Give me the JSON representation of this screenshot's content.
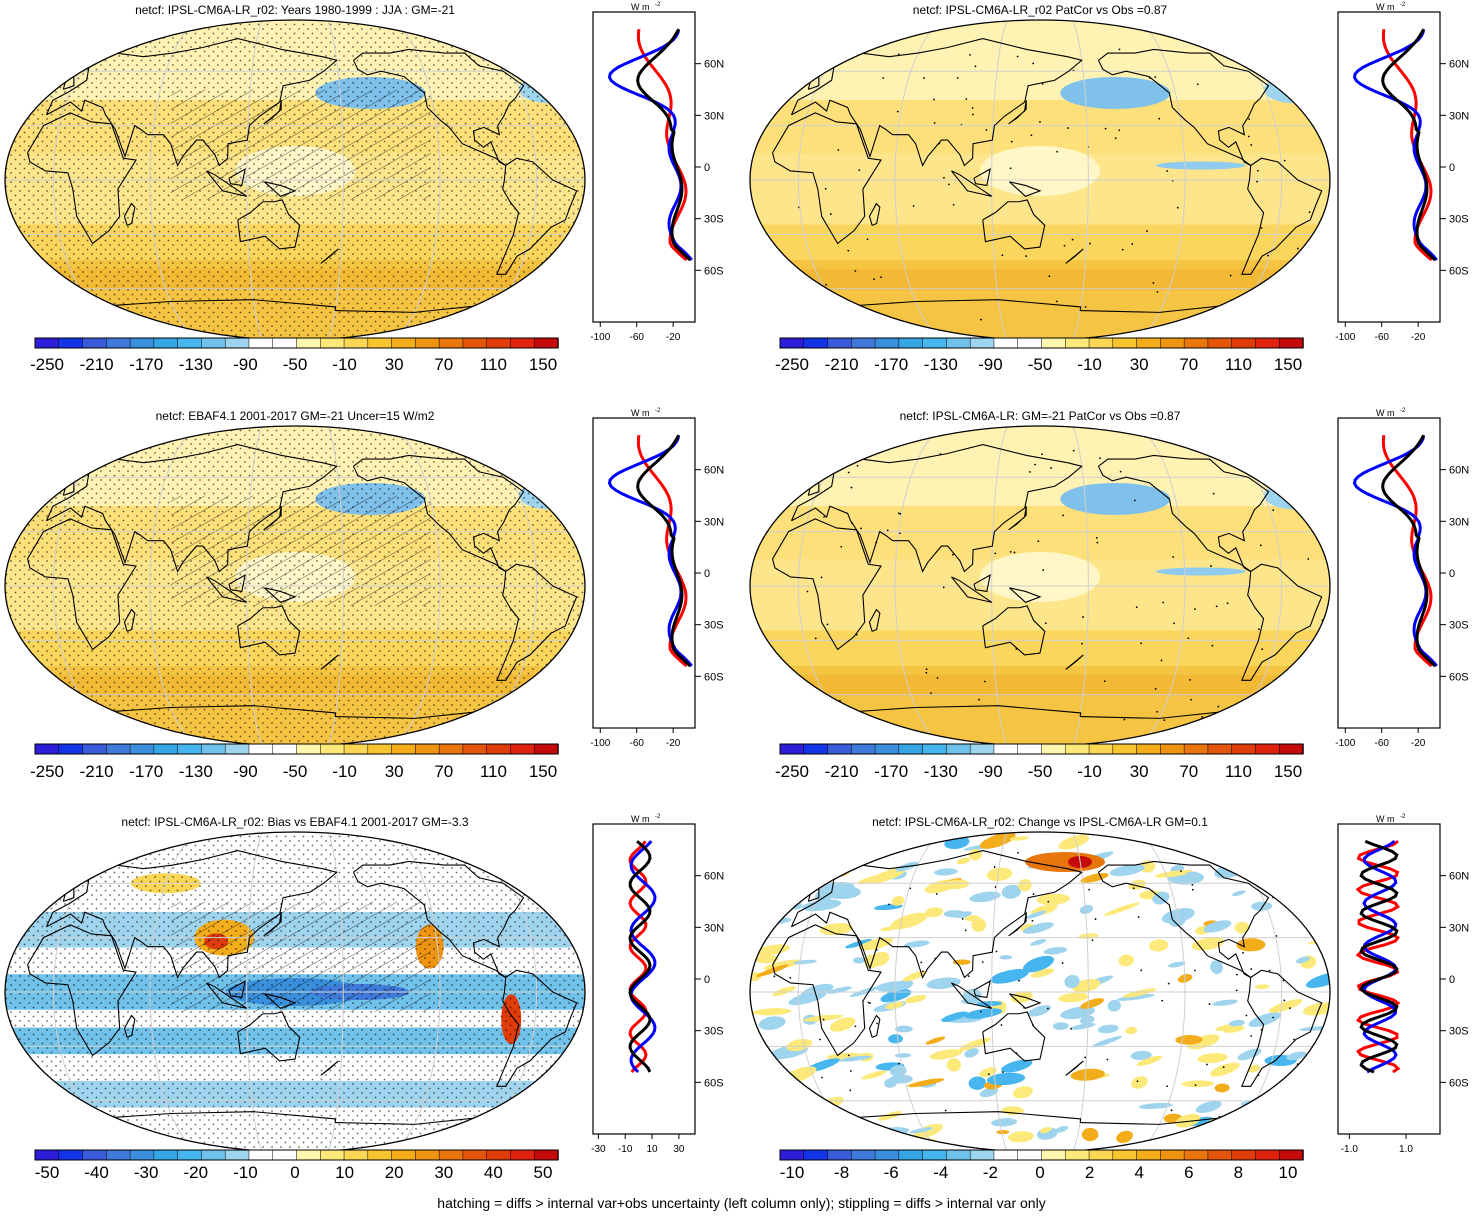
{
  "footnote": "hatching = diffs > internal var+obs uncertainty (left column only); stippling = diffs > internal var only",
  "colors": {
    "line_red": "#ff0000",
    "line_blue": "#0000ff",
    "line_black": "#000000",
    "ocean_base": "#fde283",
    "land_line": "#000000",
    "scale_main": [
      "#2c1fd9",
      "#1434e8",
      "#3a5bd9",
      "#3f79d9",
      "#3a8fdd",
      "#34a6e6",
      "#47b6ef",
      "#70c2ea",
      "#9fd4ef",
      "#ffffff",
      "#ffffff",
      "#fff7b0",
      "#fde97a",
      "#fbd755",
      "#f8c42f",
      "#f3ad1a",
      "#ef9410",
      "#e8760c",
      "#e3560a",
      "#e03c0a",
      "#e0230e",
      "#c40a0a"
    ],
    "scale_bias": [
      "#2c1fd9",
      "#1434e8",
      "#3a5bd9",
      "#3f79d9",
      "#3a8fdd",
      "#34a6e6",
      "#47b6ef",
      "#70c2ea",
      "#9fd4ef",
      "#ffffff",
      "#ffffff",
      "#fff7b0",
      "#fde97a",
      "#fbd755",
      "#f8c42f",
      "#f3ad1a",
      "#ef9410",
      "#e8760c",
      "#e3560a",
      "#e03c0a",
      "#e0230e",
      "#c40a0a"
    ]
  },
  "colorbars": {
    "main": [
      "-250",
      "-210",
      "-170",
      "-130",
      "-90",
      "-50",
      "-10",
      "30",
      "70",
      "110",
      "150"
    ],
    "bias": [
      "-50",
      "-40",
      "-30",
      "-20",
      "-10",
      "0",
      "10",
      "20",
      "30",
      "40",
      "50"
    ],
    "change": [
      "-10",
      "-8",
      "-6",
      "-4",
      "-2",
      "0",
      "2",
      "4",
      "6",
      "8",
      "10"
    ]
  },
  "profile_axis": {
    "units": "W m",
    "units_sup": "-2",
    "lat_labels": [
      "60N",
      "30N",
      "0",
      "30S",
      "60S"
    ],
    "x_main": [
      "-100",
      "-60",
      "-20"
    ],
    "x_bias": [
      "-30",
      "-10",
      "10",
      "30"
    ],
    "x_change": [
      "-1.0",
      "1.0"
    ]
  },
  "panels": [
    {
      "id": "p1",
      "title": "netcf: IPSL-CM6A-LR_r02: Years 1980-1999 : JJA : GM=-21",
      "scale": "main",
      "kind": "model"
    },
    {
      "id": "p2",
      "title": "netcf: IPSL-CM6A-LR_r02 PatCor vs Obs =0.87",
      "scale": "main",
      "kind": "ens"
    },
    {
      "id": "p3",
      "title": "netcf: EBAF4.1 2001-2017 GM=-21 Uncer=15 W/m2",
      "scale": "main",
      "kind": "obs"
    },
    {
      "id": "p4",
      "title": "netcf: IPSL-CM6A-LR: GM=-21 PatCor vs Obs =0.87",
      "scale": "main",
      "kind": "ens"
    },
    {
      "id": "p5",
      "title": "netcf: IPSL-CM6A-LR_r02: Bias vs EBAF4.1 2001-2017 GM=-3.3",
      "scale": "bias",
      "kind": "bias"
    },
    {
      "id": "p6",
      "title": "netcf: IPSL-CM6A-LR_r02: Change vs IPSL-CM6A-LR GM=0.1",
      "scale": "change",
      "kind": "change"
    }
  ]
}
